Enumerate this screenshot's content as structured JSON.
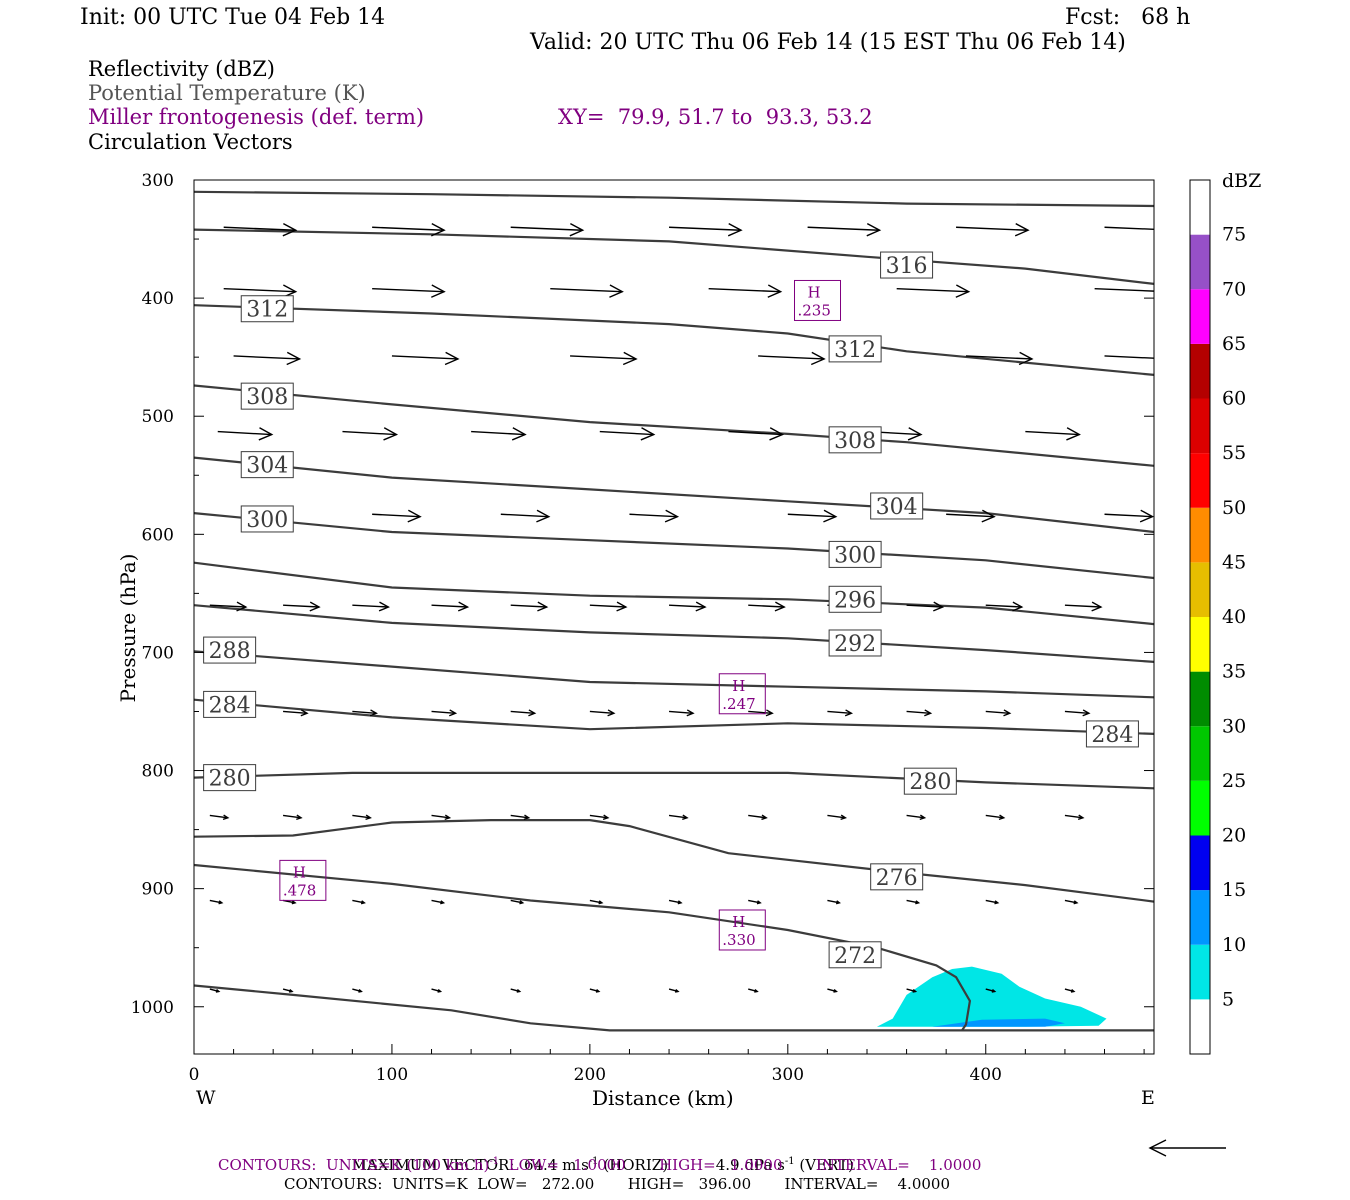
{
  "header": {
    "init": "Init: 00 UTC Tue 04 Feb 14",
    "fcst": "Fcst:   68 h",
    "valid": "Valid: 20 UTC Thu 06 Feb 14 (15 EST Thu 06 Feb 14)"
  },
  "fields": {
    "reflectivity": "Reflectivity (dBZ)",
    "theta": "Potential Temperature (K)",
    "miller": "Miller frontogenesis (def. term)",
    "xy": "XY=  79.9, 51.7 to  93.3, 53.2",
    "vectors": "Circulation Vectors"
  },
  "colors": {
    "miller": "#800080",
    "theta_line": "#3c3c3c",
    "theta_label": "#3c3c3c",
    "frame": "#000000"
  },
  "footer": {
    "maxvec_label": "MAXIMUM VECTOR:",
    "maxvec_horiz": "64.4 m s",
    "maxvec_horiz_unit": "(HORIZ)",
    "maxvec_vert": "4.9 dPa s",
    "maxvec_vert_unit": "(VERT)",
    "exp": "-1",
    "contours1_a": "CONTOURS:  UNITS=K (100 km h)",
    "contours1_b": "  LOW=   1.0000       HIGH=   1.0000       INTERVAL=    1.0000",
    "contours2": "CONTOURS:  UNITS=K  LOW=   272.00       HIGH=   396.00       INTERVAL=    4.0000"
  },
  "chart_data": {
    "type": "cross-section",
    "xlabel": "Distance (km)",
    "ylabel": "Pressure (hPa)",
    "x_left_label": "W",
    "x_right_label": "E",
    "xlim": [
      0,
      485
    ],
    "ylim": [
      300,
      1040
    ],
    "xticks": [
      0,
      100,
      200,
      300,
      400
    ],
    "yticks": [
      300,
      400,
      500,
      600,
      700,
      800,
      900,
      1000
    ],
    "colorbar": {
      "title": "dBZ",
      "levels": [
        5,
        10,
        15,
        20,
        25,
        30,
        35,
        40,
        45,
        50,
        55,
        60,
        65,
        70,
        75
      ],
      "colors": [
        "#ffffff",
        "#00e6e6",
        "#0096ff",
        "#0000f0",
        "#00ff00",
        "#00c800",
        "#008c00",
        "#ffff00",
        "#e6be00",
        "#ff8c00",
        "#ff0000",
        "#dc0000",
        "#b40000",
        "#ff00ff",
        "#9650c8",
        "#ffffff"
      ]
    },
    "isentropes": [
      {
        "theta": null,
        "points": [
          [
            0,
            310
          ],
          [
            120,
            312
          ],
          [
            240,
            315
          ],
          [
            360,
            320
          ],
          [
            485,
            322
          ]
        ]
      },
      {
        "theta": 316,
        "label_at": [
          360,
          372
        ],
        "points": [
          [
            0,
            342
          ],
          [
            120,
            346
          ],
          [
            240,
            352
          ],
          [
            340,
            365
          ],
          [
            420,
            375
          ],
          [
            485,
            388
          ]
        ]
      },
      {
        "theta": 312,
        "label_at": [
          37,
          409
        ],
        "points": [
          [
            0,
            406
          ],
          [
            120,
            413
          ],
          [
            240,
            422
          ],
          [
            300,
            430
          ],
          [
            360,
            445
          ],
          [
            485,
            465
          ]
        ]
      },
      {
        "theta": 312,
        "label_at": [
          334,
          443
        ]
      },
      {
        "theta": 308,
        "label_at": [
          37,
          483
        ],
        "points": [
          [
            0,
            474
          ],
          [
            100,
            490
          ],
          [
            200,
            505
          ],
          [
            300,
            515
          ],
          [
            360,
            522
          ],
          [
            485,
            542
          ]
        ]
      },
      {
        "theta": 308,
        "label_at": [
          334,
          520
        ]
      },
      {
        "theta": 304,
        "label_at": [
          37,
          541
        ],
        "points": [
          [
            0,
            535
          ],
          [
            100,
            552
          ],
          [
            200,
            562
          ],
          [
            300,
            572
          ],
          [
            400,
            582
          ],
          [
            485,
            598
          ]
        ]
      },
      {
        "theta": 304,
        "label_at": [
          355,
          576
        ]
      },
      {
        "theta": 300,
        "label_at": [
          37,
          587
        ],
        "points": [
          [
            0,
            582
          ],
          [
            100,
            598
          ],
          [
            200,
            605
          ],
          [
            300,
            612
          ],
          [
            400,
            622
          ],
          [
            485,
            637
          ]
        ]
      },
      {
        "theta": 300,
        "label_at": [
          334,
          617
        ]
      },
      {
        "theta": 296,
        "label_at": [
          334,
          655
        ],
        "points": [
          [
            0,
            624
          ],
          [
            100,
            645
          ],
          [
            200,
            652
          ],
          [
            300,
            655
          ],
          [
            400,
            662
          ],
          [
            485,
            676
          ]
        ]
      },
      {
        "theta": 292,
        "label_at": [
          334,
          692
        ],
        "points": [
          [
            0,
            660
          ],
          [
            100,
            675
          ],
          [
            200,
            683
          ],
          [
            300,
            688
          ],
          [
            400,
            698
          ],
          [
            485,
            708
          ]
        ]
      },
      {
        "theta": 288,
        "label_at": [
          18,
          698
        ],
        "points": [
          [
            0,
            699
          ],
          [
            100,
            712
          ],
          [
            200,
            725
          ],
          [
            300,
            729
          ],
          [
            400,
            733
          ],
          [
            485,
            738
          ]
        ]
      },
      {
        "theta": 284,
        "label_at": [
          18,
          744
        ],
        "points": [
          [
            0,
            740
          ],
          [
            100,
            755
          ],
          [
            200,
            765
          ],
          [
            300,
            760
          ],
          [
            400,
            764
          ],
          [
            485,
            769
          ]
        ]
      },
      {
        "theta": 284,
        "label_at": [
          464,
          769
        ]
      },
      {
        "theta": 280,
        "label_at": [
          18,
          806
        ],
        "points": [
          [
            0,
            806
          ],
          [
            80,
            802
          ],
          [
            200,
            802
          ],
          [
            300,
            802
          ],
          [
            400,
            810
          ],
          [
            485,
            815
          ]
        ]
      },
      {
        "theta": 280,
        "label_at": [
          372,
          809
        ]
      },
      {
        "theta": 276,
        "label_at": [
          355,
          890
        ],
        "points": [
          [
            0,
            856
          ],
          [
            50,
            855
          ],
          [
            100,
            844
          ],
          [
            150,
            842
          ],
          [
            200,
            842
          ],
          [
            220,
            847
          ],
          [
            270,
            870
          ],
          [
            350,
            885
          ],
          [
            420,
            897
          ],
          [
            485,
            911
          ]
        ]
      },
      {
        "theta": 272,
        "label_at": [
          334,
          956
        ],
        "points": [
          [
            0,
            880
          ],
          [
            100,
            896
          ],
          [
            170,
            910
          ],
          [
            240,
            920
          ],
          [
            300,
            935
          ],
          [
            345,
            950
          ],
          [
            375,
            965
          ],
          [
            385,
            975
          ],
          [
            392,
            995
          ],
          [
            390,
            1015
          ],
          [
            388,
            1020
          ]
        ]
      },
      {
        "theta": null,
        "points": [
          [
            0,
            982
          ],
          [
            50,
            990
          ],
          [
            130,
            1003
          ],
          [
            170,
            1014
          ],
          [
            210,
            1020
          ],
          [
            485,
            1020
          ]
        ]
      }
    ],
    "reflectivity_areas": [
      {
        "dbz": 5,
        "points": [
          [
            345,
            1017
          ],
          [
            353,
            1010
          ],
          [
            360,
            990
          ],
          [
            373,
            975
          ],
          [
            383,
            968
          ],
          [
            393,
            966
          ],
          [
            408,
            972
          ],
          [
            417,
            983
          ],
          [
            430,
            993
          ],
          [
            448,
            1000
          ],
          [
            461,
            1010
          ],
          [
            457,
            1016
          ],
          [
            420,
            1017
          ],
          [
            345,
            1017
          ]
        ]
      },
      {
        "dbz": 10,
        "points": [
          [
            373,
            1017
          ],
          [
            398,
            1011
          ],
          [
            430,
            1010
          ],
          [
            440,
            1014
          ],
          [
            430,
            1017
          ],
          [
            373,
            1017
          ]
        ]
      }
    ],
    "frontogenesis_maxima": [
      {
        "label": "H",
        "value": ".235",
        "at": [
          315,
          402
        ]
      },
      {
        "label": "H",
        "value": ".247",
        "at": [
          277,
          735
        ]
      },
      {
        "label": "H",
        "value": ".478",
        "at": [
          55,
          893
        ]
      },
      {
        "label": "H",
        "value": ".330",
        "at": [
          277,
          935
        ]
      }
    ],
    "vector_rows": [
      {
        "p": 340,
        "x": [
          15,
          90,
          160,
          240,
          310,
          385,
          460
        ],
        "u": 1.2,
        "v": 0.05
      },
      {
        "p": 392,
        "x": [
          15,
          90,
          180,
          260,
          355,
          455
        ],
        "u": 1.2,
        "v": 0.05
      },
      {
        "p": 449,
        "x": [
          20,
          100,
          190,
          285,
          390,
          460
        ],
        "u": 1.1,
        "v": 0.05
      },
      {
        "p": 513,
        "x": [
          12,
          75,
          140,
          205,
          270,
          340,
          420
        ],
        "u": 0.9,
        "v": 0.05
      },
      {
        "p": 583,
        "x": [
          25,
          90,
          155,
          220,
          300,
          380,
          460
        ],
        "u": 0.8,
        "v": 0.04
      },
      {
        "p": 660,
        "x": [
          8,
          45,
          80,
          120,
          160,
          200,
          240,
          280,
          320,
          360,
          400,
          440
        ],
        "u": 0.6,
        "v": 0.03
      },
      {
        "p": 750,
        "x": [
          8,
          45,
          80,
          120,
          160,
          200,
          240,
          280,
          320,
          360,
          400,
          440
        ],
        "u": 0.4,
        "v": 0.03
      },
      {
        "p": 838,
        "x": [
          8,
          45,
          80,
          120,
          160,
          200,
          240,
          280,
          320,
          360,
          400,
          440
        ],
        "u": 0.3,
        "v": 0.04
      },
      {
        "p": 910,
        "x": [
          8,
          45,
          80,
          120,
          160,
          200,
          240,
          280,
          320,
          360,
          400,
          440
        ],
        "u": 0.2,
        "v": 0.04
      },
      {
        "p": 985,
        "x": [
          8,
          45,
          80,
          120,
          160,
          200,
          240,
          280,
          320,
          360,
          400,
          440
        ],
        "u": 0.15,
        "v": 0.04
      }
    ],
    "reference_vector": "leftward"
  }
}
